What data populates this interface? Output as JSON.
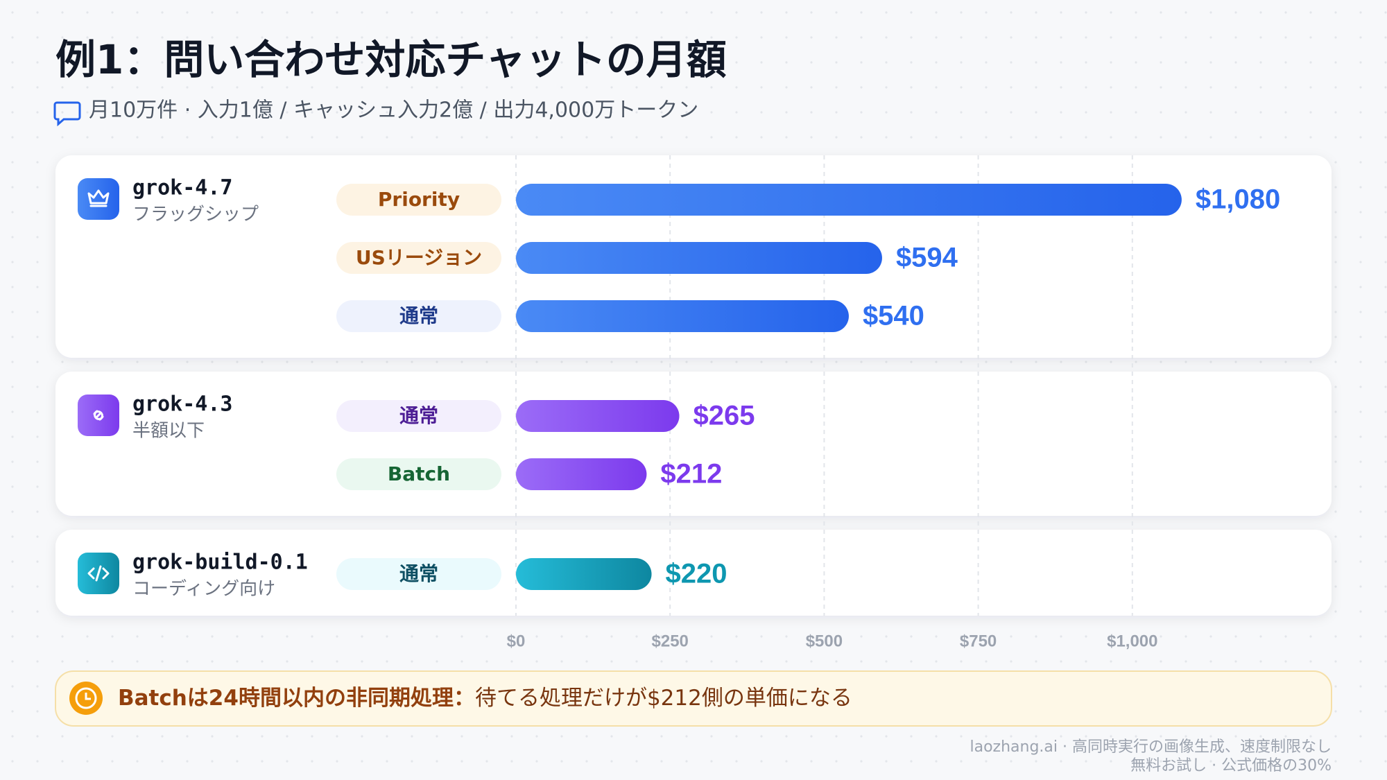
{
  "chart_data": {
    "type": "bar",
    "orientation": "horizontal",
    "title": "例1：問い合わせ対応チャットの月額",
    "subtitle": "月10万件 · 入力1億 / キャッシュ入力2億 / 出力4,000万トークン",
    "groups": [
      {
        "name": "grok-4.7",
        "subtitle": "フラッグシップ",
        "color": "#2f6ff0",
        "categories": [
          "Priority",
          "USリージョン",
          "通常"
        ],
        "values": [
          1080,
          594,
          540
        ],
        "value_labels": [
          "$1,080",
          "$594",
          "$540"
        ]
      },
      {
        "name": "grok-4.3",
        "subtitle": "半額以下",
        "color": "#7c3aed",
        "categories": [
          "通常",
          "Batch"
        ],
        "values": [
          265,
          212
        ],
        "value_labels": [
          "$265",
          "$212"
        ]
      },
      {
        "name": "grok-build-0.1",
        "subtitle": "コーディング向け",
        "color": "#0e97b0",
        "categories": [
          "通常"
        ],
        "values": [
          220
        ],
        "value_labels": [
          "$220"
        ]
      }
    ],
    "xlim": [
      0,
      1250
    ],
    "xticks": [
      {
        "value": 0,
        "label": "$0"
      },
      {
        "value": 250,
        "label": "$250"
      },
      {
        "value": 500,
        "label": "$500"
      },
      {
        "value": 750,
        "label": "$750"
      },
      {
        "value": 1000,
        "label": "$1,000"
      }
    ],
    "grid": true
  },
  "note": {
    "title": "Batchは24時間以内の非同期処理：",
    "text": "待てる処理だけが$212側の単価になる"
  },
  "footer": [
    "laozhang.ai · 高同時実行の画像生成、速度制限なし",
    "無料お試し · 公式価格の30%"
  ]
}
